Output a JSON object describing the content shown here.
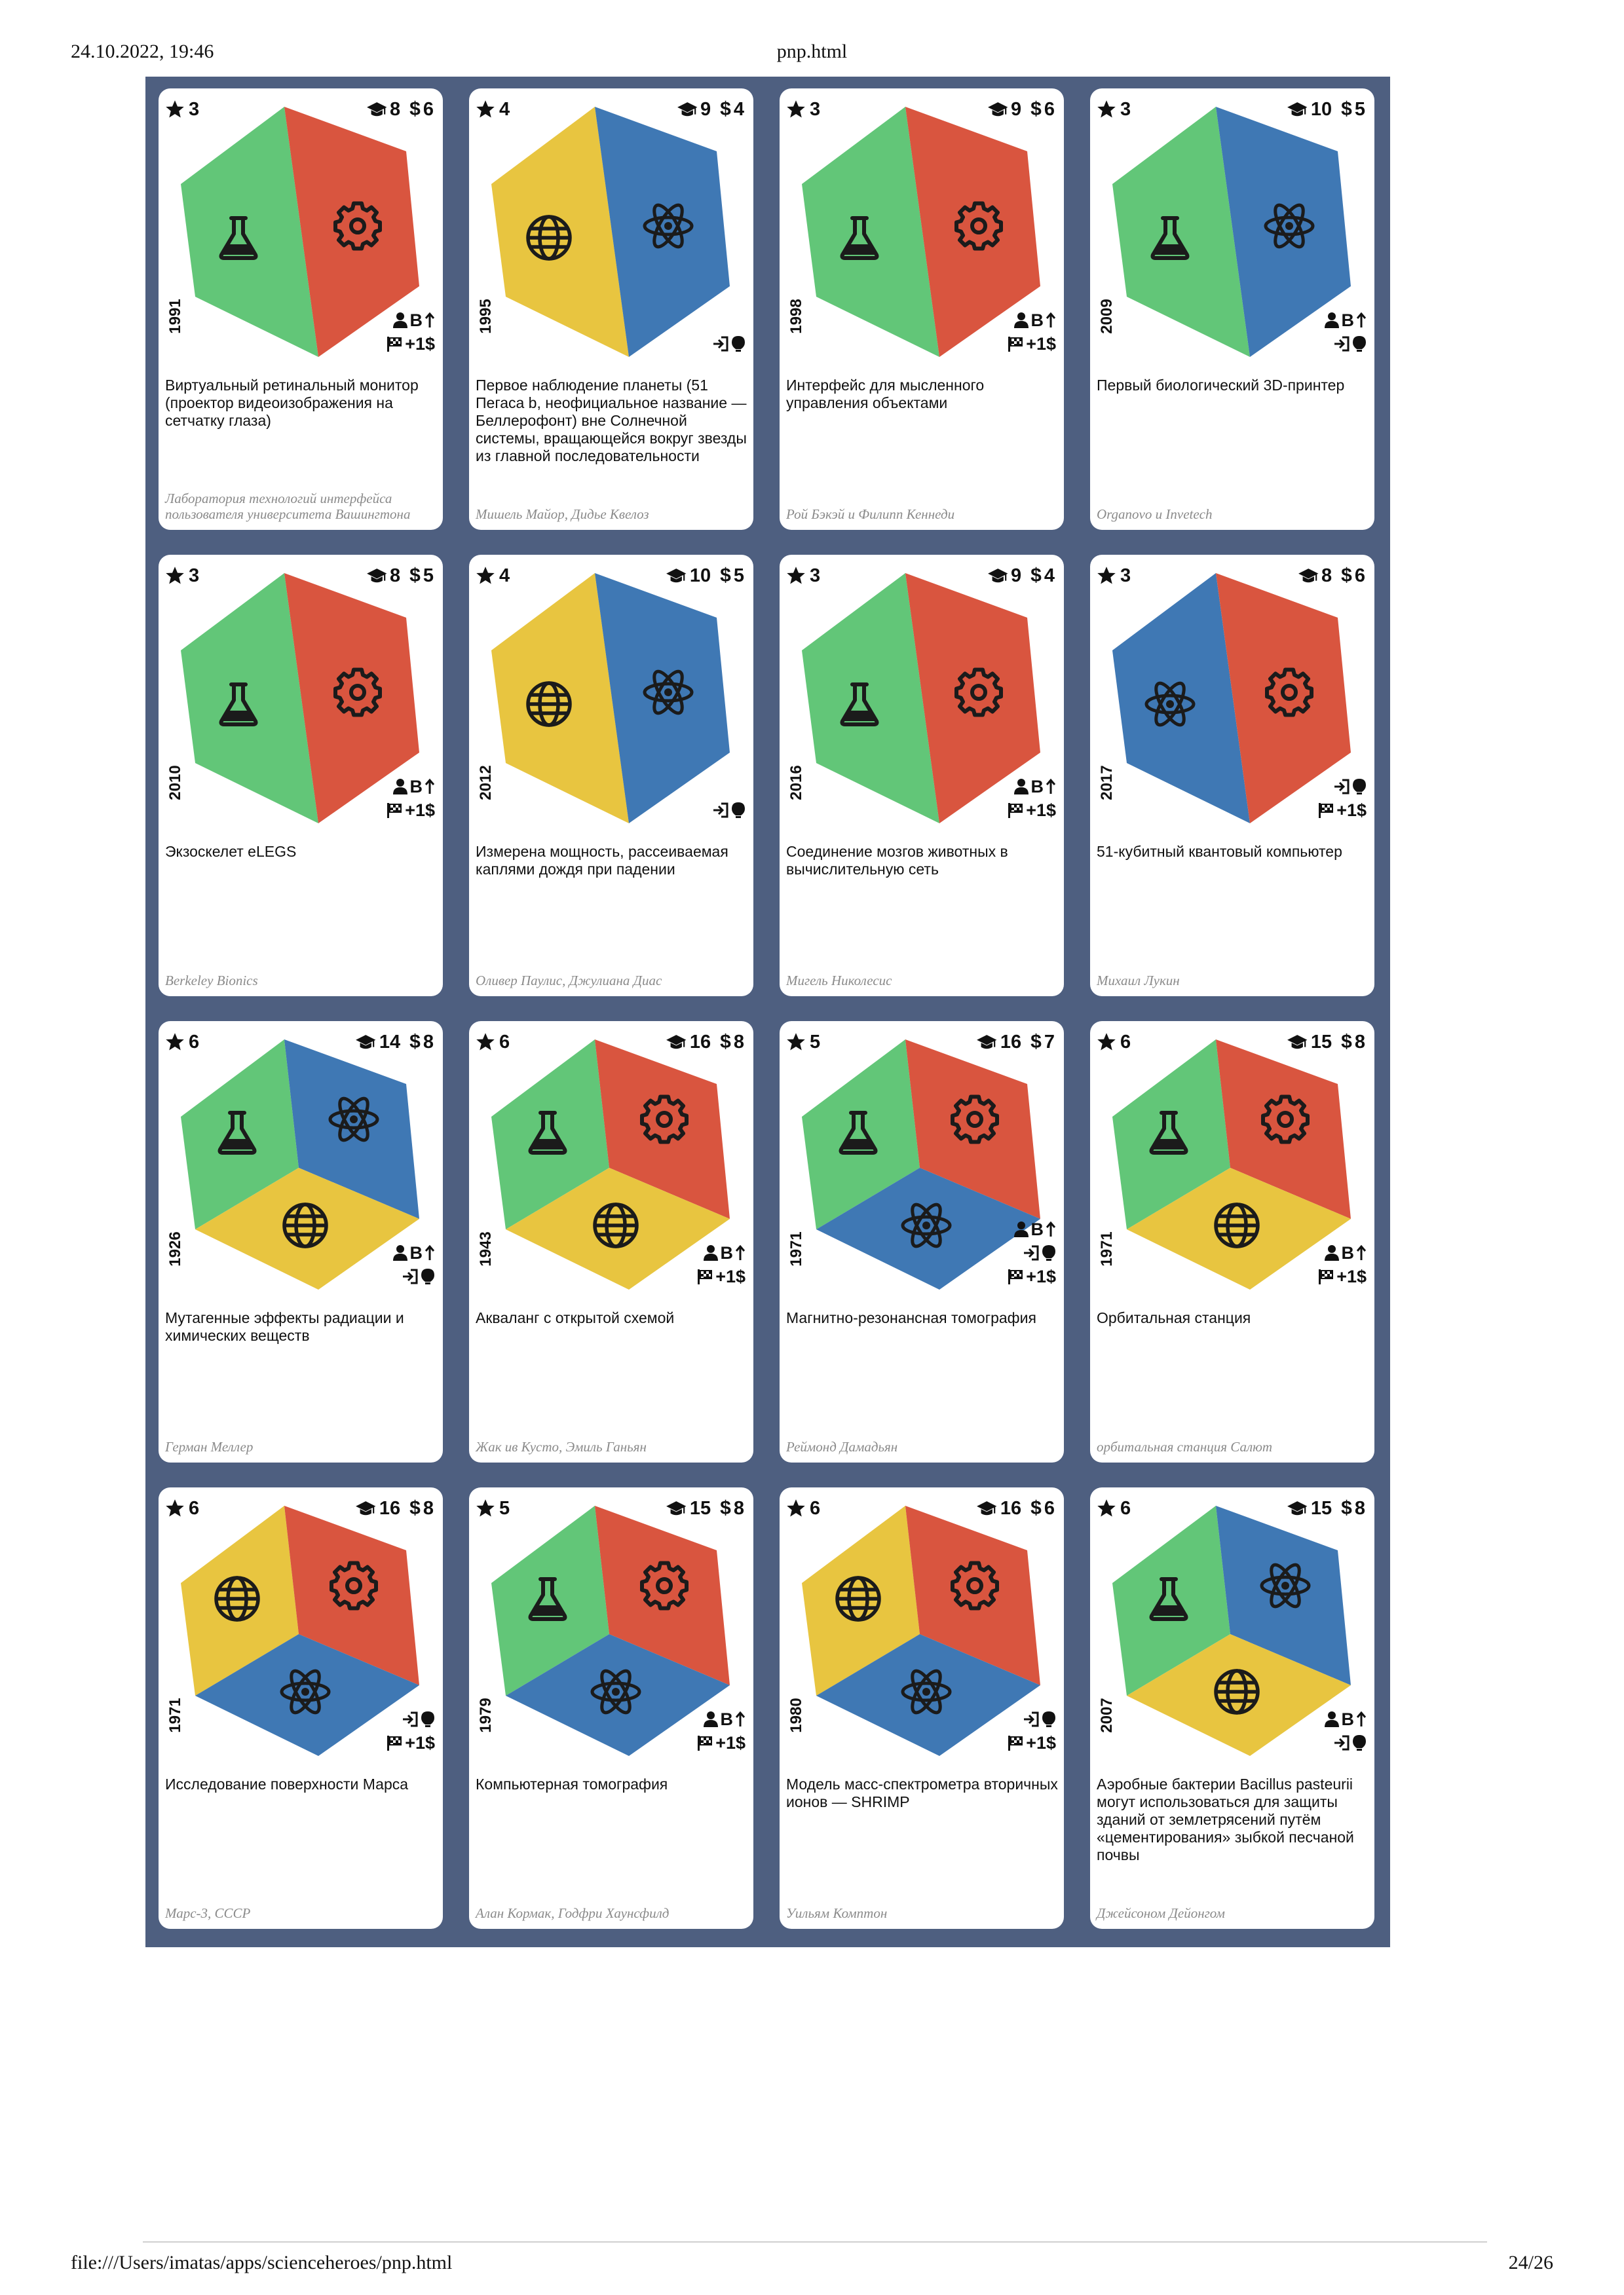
{
  "header": {
    "datetime": "24.10.2022, 19:46",
    "page_title": "pnp.html"
  },
  "footer": {
    "url": "file:///Users/imatas/apps/scienceheroes/pnp.html",
    "page": "24/26"
  },
  "colors": {
    "science": "#62c678",
    "engineering": "#d9553f",
    "humanities": "#e8c540",
    "physics": "#3f78b4",
    "sheet": "#4e5f80"
  },
  "cards": [
    {
      "stars": "3",
      "edu": "8",
      "cost": "6",
      "year": "1991",
      "faces": [
        "science",
        "engineering"
      ],
      "effects": [
        "person",
        "flag"
      ],
      "title": "Виртуальный ретинальный монитор (проектор видеоизображения на сетчатку глаза)",
      "author": "Лаборатория технологий интерфейса пользователя университета Вашингтона"
    },
    {
      "stars": "4",
      "edu": "9",
      "cost": "4",
      "year": "1995",
      "faces": [
        "humanities",
        "physics"
      ],
      "effects": [
        "idea"
      ],
      "title": "Первое наблюдение планеты (51 Пегаса b, неофициальное название — Беллерофонт) вне Солнечной системы, вращающейся вокруг звезды из главной последовательности",
      "author": "Мишель Майор, Дидье Квелоз"
    },
    {
      "stars": "3",
      "edu": "9",
      "cost": "6",
      "year": "1998",
      "faces": [
        "science",
        "engineering"
      ],
      "effects": [
        "person",
        "flag"
      ],
      "title": "Интерфейс для мысленного управления объектами",
      "author": "Рой Бэкэй и Филипп Кеннеди"
    },
    {
      "stars": "3",
      "edu": "10",
      "cost": "5",
      "year": "2009",
      "faces": [
        "science",
        "physics"
      ],
      "effects": [
        "person",
        "idea"
      ],
      "title": "Первый биологический 3D-принтер",
      "author": "Organovo и Invetech"
    },
    {
      "stars": "3",
      "edu": "8",
      "cost": "5",
      "year": "2010",
      "faces": [
        "science",
        "engineering"
      ],
      "effects": [
        "person",
        "flag"
      ],
      "title": "Экзоскелет eLEGS",
      "author": "Berkeley Bionics"
    },
    {
      "stars": "4",
      "edu": "10",
      "cost": "5",
      "year": "2012",
      "faces": [
        "humanities",
        "physics"
      ],
      "effects": [
        "idea"
      ],
      "title": "Измерена мощность, рассеиваемая каплями дождя при падении",
      "author": "Оливер Паулис, Джулиана Диас"
    },
    {
      "stars": "3",
      "edu": "9",
      "cost": "4",
      "year": "2016",
      "faces": [
        "science",
        "engineering"
      ],
      "effects": [
        "person",
        "flag"
      ],
      "title": "Соединение мозгов животных в вычислительную сеть",
      "author": "Мигель Николесис"
    },
    {
      "stars": "3",
      "edu": "8",
      "cost": "6",
      "year": "2017",
      "faces": [
        "physics",
        "engineering"
      ],
      "effects": [
        "idea",
        "flag"
      ],
      "title": "51-кубитный квантовый компьютер",
      "author": "Михаил Лукин"
    },
    {
      "stars": "6",
      "edu": "14",
      "cost": "8",
      "year": "1926",
      "faces": [
        "science",
        "physics",
        "humanities"
      ],
      "effects": [
        "person",
        "idea"
      ],
      "title": "Мутагенные эффекты радиации и химических веществ",
      "author": "Герман Меллер"
    },
    {
      "stars": "6",
      "edu": "16",
      "cost": "8",
      "year": "1943",
      "faces": [
        "science",
        "engineering",
        "humanities"
      ],
      "effects": [
        "person",
        "flag"
      ],
      "title": "Акваланг с открытой схемой",
      "author": "Жак ив Кусто, Эмиль Ганьян"
    },
    {
      "stars": "5",
      "edu": "16",
      "cost": "7",
      "year": "1971",
      "faces": [
        "science",
        "engineering",
        "physics"
      ],
      "effects": [
        "person",
        "idea",
        "flag"
      ],
      "title": "Магнитно-резонансная томография",
      "author": "Реймонд Дамадьян"
    },
    {
      "stars": "6",
      "edu": "15",
      "cost": "8",
      "year": "1971",
      "faces": [
        "science",
        "engineering",
        "humanities"
      ],
      "effects": [
        "person",
        "flag"
      ],
      "title": "Орбитальная станция",
      "author": "орбитальная станция Салют"
    },
    {
      "stars": "6",
      "edu": "16",
      "cost": "8",
      "year": "1971",
      "faces": [
        "humanities",
        "engineering",
        "physics"
      ],
      "effects": [
        "idea",
        "flag"
      ],
      "title": "Исследование поверхности Марса",
      "author": "Марс-3, СССР"
    },
    {
      "stars": "5",
      "edu": "15",
      "cost": "8",
      "year": "1979",
      "faces": [
        "science",
        "engineering",
        "physics"
      ],
      "effects": [
        "person",
        "flag"
      ],
      "title": "Компьютерная томография",
      "author": "Алан Кормак, Годфри Хаунсфилд"
    },
    {
      "stars": "6",
      "edu": "16",
      "cost": "6",
      "year": "1980",
      "faces": [
        "humanities",
        "engineering",
        "physics"
      ],
      "effects": [
        "idea",
        "flag"
      ],
      "title": "Модель масс-спектрометра вторичных ионов — SHRIMP",
      "author": "Уильям Комптон"
    },
    {
      "stars": "6",
      "edu": "15",
      "cost": "8",
      "year": "2007",
      "faces": [
        "science",
        "physics",
        "humanities"
      ],
      "effects": [
        "person",
        "idea"
      ],
      "title": "Аэробные бактерии Bacillus pasteurii могут использоваться для защиты зданий от землетрясений путём «цементирования» зыбкой песчаной почвы",
      "author": "Джейсоном Дейонгом"
    }
  ]
}
